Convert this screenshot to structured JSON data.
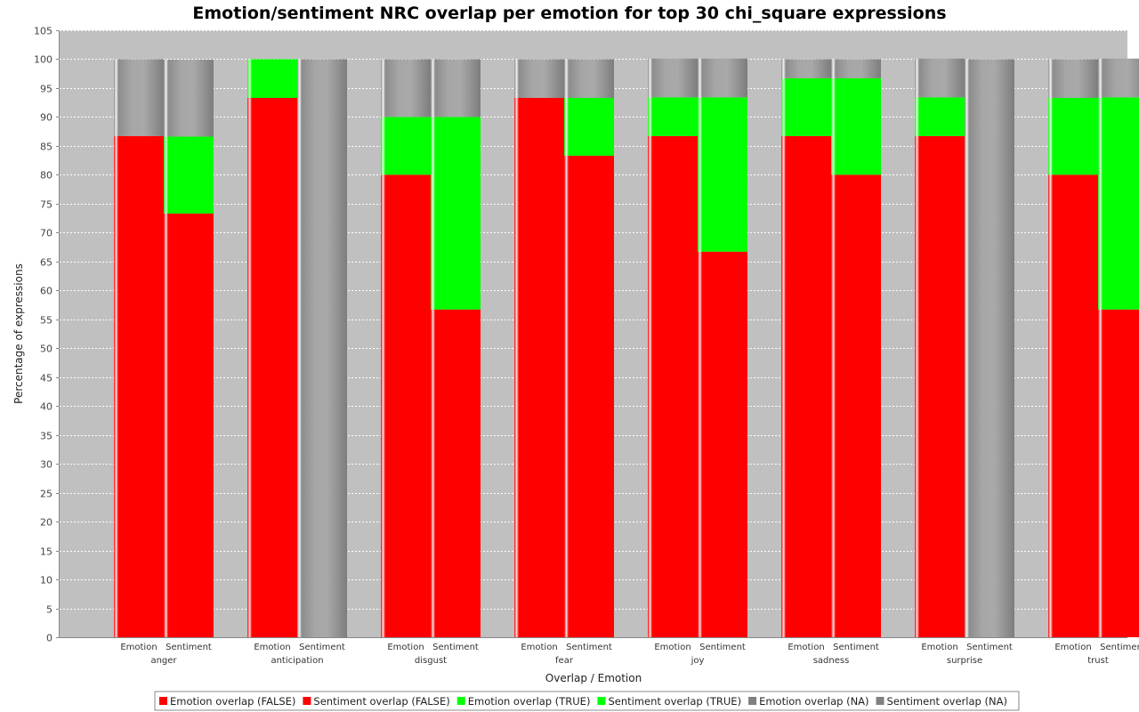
{
  "chart_data": {
    "type": "bar",
    "stacked": true,
    "title": "Emotion/sentiment NRC overlap per emotion for top 30 chi_square expressions",
    "xlabel": "Overlap / Emotion",
    "ylabel": "Percentage of expressions",
    "ylim": [
      0,
      105
    ],
    "yticks": [
      0,
      5,
      10,
      15,
      20,
      25,
      30,
      35,
      40,
      45,
      50,
      55,
      60,
      65,
      70,
      75,
      80,
      85,
      90,
      95,
      100,
      105
    ],
    "grid": true,
    "legend_position": "bottom",
    "categories": [
      "anger",
      "anticipation",
      "disgust",
      "fear",
      "joy",
      "sadness",
      "surprise",
      "trust"
    ],
    "subcategories": [
      "Emotion",
      "Sentiment"
    ],
    "series": [
      {
        "name": "Emotion overlap (FALSE)",
        "group": "Emotion",
        "stack": "FALSE",
        "color": "#ff0000",
        "values": [
          86.7,
          93.3,
          80.0,
          93.3,
          86.7,
          86.7,
          86.7,
          80.0
        ]
      },
      {
        "name": "Sentiment overlap (FALSE)",
        "group": "Sentiment",
        "stack": "FALSE",
        "color": "#ff0000",
        "values": [
          73.3,
          0,
          56.7,
          83.3,
          66.7,
          80.0,
          0,
          56.7
        ]
      },
      {
        "name": "Emotion overlap (TRUE)",
        "group": "Emotion",
        "stack": "TRUE",
        "color": "#00ff00",
        "values": [
          0,
          6.7,
          10.0,
          0,
          6.7,
          10.0,
          6.7,
          13.3
        ]
      },
      {
        "name": "Sentiment overlap (TRUE)",
        "group": "Sentiment",
        "stack": "TRUE",
        "color": "#00ff00",
        "values": [
          13.3,
          0,
          33.3,
          10.0,
          26.7,
          16.7,
          0,
          36.7
        ]
      },
      {
        "name": "Emotion overlap (NA)",
        "group": "Emotion",
        "stack": "NA",
        "color": "#808080",
        "values": [
          13.3,
          0,
          10.0,
          6.7,
          6.7,
          3.3,
          6.7,
          6.7
        ]
      },
      {
        "name": "Sentiment overlap (NA)",
        "group": "Sentiment",
        "stack": "NA",
        "color": "#808080",
        "values": [
          13.3,
          100,
          10.0,
          6.7,
          6.7,
          3.3,
          100,
          6.7
        ]
      }
    ]
  }
}
